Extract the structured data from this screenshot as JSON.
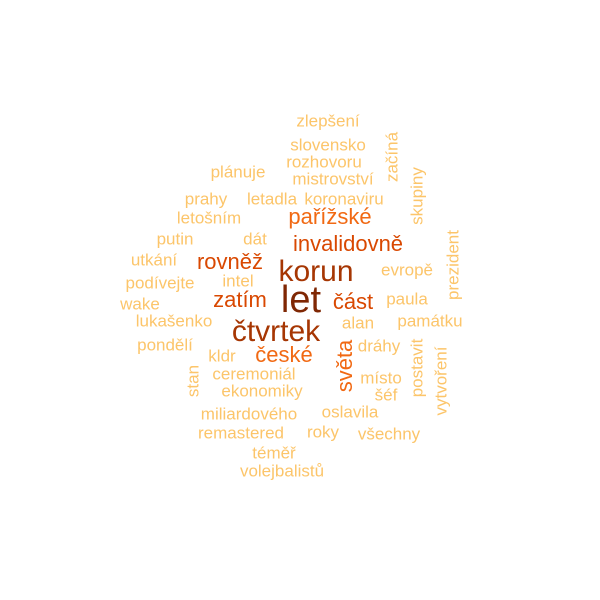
{
  "palette": {
    "darkest": "#7f2704",
    "dark": "#a63603",
    "mid": "#d94801",
    "orange": "#f16913",
    "light": "#fd8d3c",
    "pale": "#fdae6b",
    "faint": "#fcc56a"
  },
  "words": [
    {
      "text": "let",
      "color_key": "darkest",
      "vertical": false
    },
    {
      "text": "čtvrtek",
      "color_key": "dark",
      "vertical": false
    },
    {
      "text": "korun",
      "color_key": "dark",
      "vertical": false
    },
    {
      "text": "pařížské",
      "color_key": "orange",
      "vertical": false
    },
    {
      "text": "invalidovně",
      "color_key": "mid",
      "vertical": false
    },
    {
      "text": "rovněž",
      "color_key": "mid",
      "vertical": false
    },
    {
      "text": "zatím",
      "color_key": "mid",
      "vertical": false
    },
    {
      "text": "část",
      "color_key": "mid",
      "vertical": false
    },
    {
      "text": "české",
      "color_key": "orange",
      "vertical": false
    },
    {
      "text": "světa",
      "color_key": "orange",
      "vertical": true
    },
    {
      "text": "zlepšení",
      "color_key": "faint",
      "vertical": false
    },
    {
      "text": "slovensko",
      "color_key": "faint",
      "vertical": false
    },
    {
      "text": "rozhovoru",
      "color_key": "faint",
      "vertical": false
    },
    {
      "text": "mistrovství",
      "color_key": "faint",
      "vertical": false
    },
    {
      "text": "plánuje",
      "color_key": "faint",
      "vertical": false
    },
    {
      "text": "začíná",
      "color_key": "faint",
      "vertical": true
    },
    {
      "text": "prahy",
      "color_key": "faint",
      "vertical": false
    },
    {
      "text": "letadla",
      "color_key": "faint",
      "vertical": false
    },
    {
      "text": "koronaviru",
      "color_key": "faint",
      "vertical": false
    },
    {
      "text": "skupiny",
      "color_key": "faint",
      "vertical": true
    },
    {
      "text": "letošním",
      "color_key": "faint",
      "vertical": false
    },
    {
      "text": "putin",
      "color_key": "faint",
      "vertical": false
    },
    {
      "text": "dát",
      "color_key": "faint",
      "vertical": false
    },
    {
      "text": "prezident",
      "color_key": "faint",
      "vertical": true
    },
    {
      "text": "utkání",
      "color_key": "faint",
      "vertical": false
    },
    {
      "text": "evropě",
      "color_key": "faint",
      "vertical": false
    },
    {
      "text": "podívejte",
      "color_key": "faint",
      "vertical": false
    },
    {
      "text": "intel",
      "color_key": "faint",
      "vertical": false
    },
    {
      "text": "wake",
      "color_key": "faint",
      "vertical": false
    },
    {
      "text": "paula",
      "color_key": "faint",
      "vertical": false
    },
    {
      "text": "lukašenko",
      "color_key": "faint",
      "vertical": false
    },
    {
      "text": "alan",
      "color_key": "faint",
      "vertical": false
    },
    {
      "text": "památku",
      "color_key": "faint",
      "vertical": false
    },
    {
      "text": "pondělí",
      "color_key": "faint",
      "vertical": false
    },
    {
      "text": "dráhy",
      "color_key": "faint",
      "vertical": false
    },
    {
      "text": "kldr",
      "color_key": "faint",
      "vertical": false
    },
    {
      "text": "postavit",
      "color_key": "faint",
      "vertical": true
    },
    {
      "text": "vytvoření",
      "color_key": "faint",
      "vertical": true
    },
    {
      "text": "ceremoniál",
      "color_key": "faint",
      "vertical": false
    },
    {
      "text": "místo",
      "color_key": "faint",
      "vertical": false
    },
    {
      "text": "stan",
      "color_key": "faint",
      "vertical": true
    },
    {
      "text": "ekonomiky",
      "color_key": "faint",
      "vertical": false
    },
    {
      "text": "šéf",
      "color_key": "faint",
      "vertical": false
    },
    {
      "text": "miliardového",
      "color_key": "faint",
      "vertical": false
    },
    {
      "text": "oslavila",
      "color_key": "faint",
      "vertical": false
    },
    {
      "text": "remastered",
      "color_key": "faint",
      "vertical": false
    },
    {
      "text": "roky",
      "color_key": "faint",
      "vertical": false
    },
    {
      "text": "všechny",
      "color_key": "faint",
      "vertical": false
    },
    {
      "text": "téměř",
      "color_key": "faint",
      "vertical": false
    },
    {
      "text": "volejbalistů",
      "color_key": "faint",
      "vertical": false
    }
  ]
}
